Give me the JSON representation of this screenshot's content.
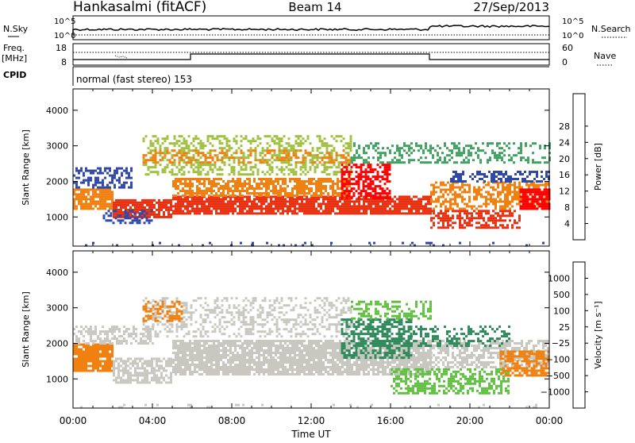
{
  "header": {
    "station": "Hankasalmi (fitACF)",
    "beam": "Beam 14",
    "date": "27/Sep/2013"
  },
  "strip": {
    "left_nsky": "N.Sky",
    "left_freq_line1": "Freq.",
    "left_freq_line2": "[MHz]",
    "left_cpid": "CPID",
    "right_nsearch": "N.Search",
    "right_nave": "Nave",
    "tick_1e5": "10^5",
    "tick_1e0": "10^0",
    "freq_top": "18",
    "freq_bottom": "8",
    "nave_top": "60",
    "nave_bottom": "0",
    "cpid_text": "normal (fast stereo) 153"
  },
  "chart_data": [
    {
      "type": "heatmap",
      "name": "power",
      "xlabel": "Time UT",
      "ylabel": "Slant Range [km]",
      "xlim_hours": [
        0,
        24
      ],
      "ylim": [
        180,
        4600
      ],
      "x_ticks": [
        "00:00",
        "04:00",
        "08:00",
        "12:00",
        "16:00",
        "20:00",
        "00:00"
      ],
      "y_ticks": [
        "1000",
        "2000",
        "3000",
        "4000"
      ],
      "colorbar_label": "Power [dB]",
      "colorbar_ticks": [
        "4",
        "8",
        "12",
        "16",
        "20",
        "24",
        "28"
      ],
      "colorbar_colors": [
        "#0000ff",
        "#3048a8",
        "#3a7a78",
        "#40a060",
        "#a0c040",
        "#f0c020",
        "#f08010",
        "#e83010",
        "#ff0000"
      ],
      "bands": [
        {
          "t0": 0.0,
          "t1": 24.0,
          "r0": 200,
          "r1": 300,
          "color": "#3048a8",
          "density": 0.08
        },
        {
          "t0": 0.0,
          "t1": 2.0,
          "r0": 1200,
          "r1": 1800,
          "color": "#f08010",
          "density": 0.85
        },
        {
          "t0": 2.0,
          "t1": 5.0,
          "r0": 1000,
          "r1": 1500,
          "color": "#e83010",
          "density": 0.85
        },
        {
          "t0": 0.0,
          "t1": 3.0,
          "r0": 1800,
          "r1": 2400,
          "color": "#3048a8",
          "density": 0.5
        },
        {
          "t0": 1.5,
          "t1": 4.0,
          "r0": 800,
          "r1": 1200,
          "color": "#3048a8",
          "density": 0.45
        },
        {
          "t0": 5.0,
          "t1": 18.0,
          "r0": 1100,
          "r1": 1600,
          "color": "#e83010",
          "density": 0.85
        },
        {
          "t0": 5.0,
          "t1": 14.0,
          "r0": 1600,
          "r1": 2100,
          "color": "#f08010",
          "density": 0.75
        },
        {
          "t0": 3.5,
          "t1": 14.0,
          "r0": 2200,
          "r1": 3300,
          "color": "#a0c040",
          "density": 0.4
        },
        {
          "t0": 3.5,
          "t1": 14.0,
          "r0": 2500,
          "r1": 2900,
          "color": "#f08010",
          "density": 0.35
        },
        {
          "t0": 13.5,
          "t1": 16.0,
          "r0": 1500,
          "r1": 2500,
          "color": "#ff0000",
          "density": 0.6
        },
        {
          "t0": 14.0,
          "t1": 24.0,
          "r0": 2500,
          "r1": 3100,
          "color": "#40a060",
          "density": 0.35
        },
        {
          "t0": 18.0,
          "t1": 22.5,
          "r0": 700,
          "r1": 1200,
          "color": "#e83010",
          "density": 0.6
        },
        {
          "t0": 18.0,
          "t1": 24.0,
          "r0": 1200,
          "r1": 2000,
          "color": "#f08010",
          "density": 0.5
        },
        {
          "t0": 22.5,
          "t1": 24.0,
          "r0": 1200,
          "r1": 1800,
          "color": "#ff0000",
          "density": 0.8
        },
        {
          "t0": 19.0,
          "t1": 24.0,
          "r0": 2000,
          "r1": 2300,
          "color": "#3048a8",
          "density": 0.5
        }
      ]
    },
    {
      "type": "heatmap",
      "name": "velocity",
      "xlabel": "Time UT",
      "ylabel": "Slant Range [km]",
      "xlim_hours": [
        0,
        24
      ],
      "ylim": [
        180,
        4600
      ],
      "x_ticks": [
        "00:00",
        "04:00",
        "08:00",
        "12:00",
        "16:00",
        "20:00",
        "00:00"
      ],
      "y_ticks": [
        "1000",
        "2000",
        "3000",
        "4000"
      ],
      "colorbar_label": "Velocity [m s⁻¹]",
      "colorbar_ticks": [
        "1000",
        "500",
        "100",
        "25",
        "−25",
        "−100",
        "−500",
        "−1000"
      ],
      "colorbar_colors": [
        "#1040c0",
        "#3060a0",
        "#2e8a5a",
        "#60c040",
        "#c8c8c0",
        "#f0b040",
        "#f08010",
        "#e84010",
        "#ff0000"
      ],
      "bands": [
        {
          "t0": 0.0,
          "t1": 24.0,
          "r0": 200,
          "r1": 300,
          "color": "#c8c8c0",
          "density": 0.08
        },
        {
          "t0": 0.0,
          "t1": 2.0,
          "r0": 1200,
          "r1": 2000,
          "color": "#f08010",
          "density": 0.9
        },
        {
          "t0": 0.0,
          "t1": 4.0,
          "r0": 2000,
          "r1": 2500,
          "color": "#c8c8c0",
          "density": 0.5
        },
        {
          "t0": 2.0,
          "t1": 5.0,
          "r0": 900,
          "r1": 1600,
          "color": "#c8c8c0",
          "density": 0.7
        },
        {
          "t0": 5.0,
          "t1": 18.0,
          "r0": 1100,
          "r1": 2100,
          "color": "#c8c8c0",
          "density": 0.85
        },
        {
          "t0": 3.5,
          "t1": 14.0,
          "r0": 2200,
          "r1": 3300,
          "color": "#c8c8c0",
          "density": 0.35
        },
        {
          "t0": 3.5,
          "t1": 5.5,
          "r0": 2600,
          "r1": 3200,
          "color": "#f08010",
          "density": 0.45
        },
        {
          "t0": 13.5,
          "t1": 17.0,
          "r0": 1600,
          "r1": 2700,
          "color": "#2e8a5a",
          "density": 0.6
        },
        {
          "t0": 14.0,
          "t1": 18.0,
          "r0": 2700,
          "r1": 3200,
          "color": "#60c040",
          "density": 0.4
        },
        {
          "t0": 16.0,
          "t1": 22.0,
          "r0": 600,
          "r1": 1300,
          "color": "#60c040",
          "density": 0.55
        },
        {
          "t0": 18.0,
          "t1": 24.0,
          "r0": 1300,
          "r1": 2100,
          "color": "#c8c8c0",
          "density": 0.6
        },
        {
          "t0": 21.5,
          "t1": 24.0,
          "r0": 1100,
          "r1": 1800,
          "color": "#f08010",
          "density": 0.7
        },
        {
          "t0": 17.0,
          "t1": 22.0,
          "r0": 1900,
          "r1": 2500,
          "color": "#2e8a5a",
          "density": 0.35
        }
      ]
    }
  ]
}
